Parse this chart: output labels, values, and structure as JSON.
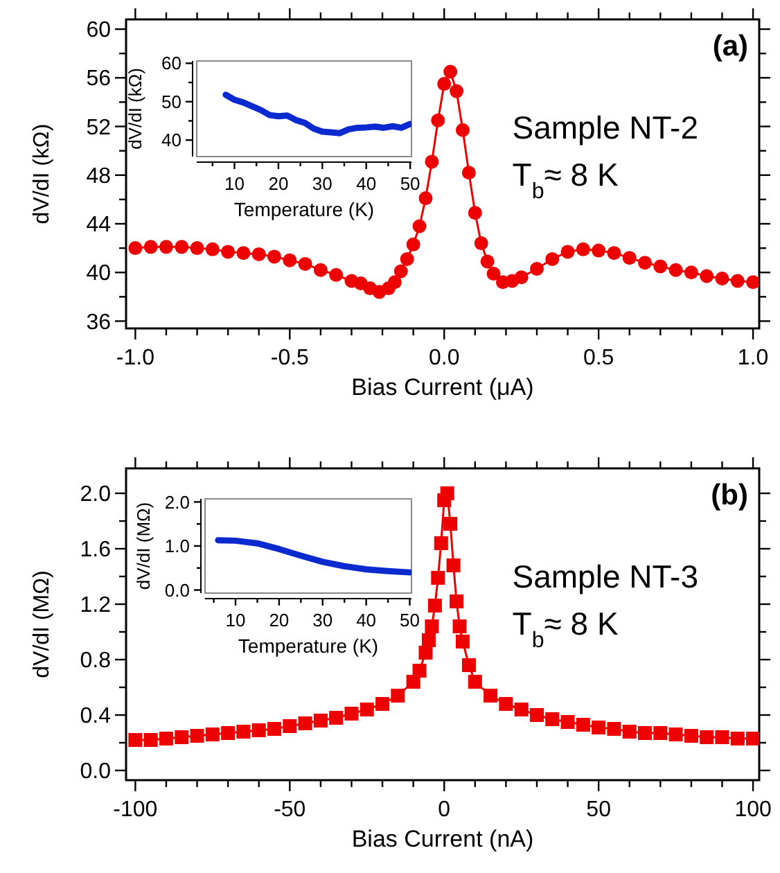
{
  "chart_data": [
    {
      "type": "line",
      "xlabel": "Bias Current (μA)",
      "ylabel": "dV/dI (kΩ)",
      "marker": "circle",
      "annotations": [
        "(a)",
        "Sample NT-2",
        "T$_{b}$≈ 8 K"
      ],
      "xlim": [
        -1.03,
        1.02
      ],
      "ylim": [
        35.4,
        60.8
      ],
      "xticks": [
        {
          "value": -1,
          "label": "-1.0"
        },
        {
          "value": -0.9,
          "label": null
        },
        {
          "value": -0.8,
          "label": null
        },
        {
          "value": -0.7,
          "label": null
        },
        {
          "value": -0.6,
          "label": null
        },
        {
          "value": -0.5,
          "label": "-0.5"
        },
        {
          "value": -0.4,
          "label": null
        },
        {
          "value": -0.3,
          "label": null
        },
        {
          "value": -0.2,
          "label": null
        },
        {
          "value": -0.1,
          "label": null
        },
        {
          "value": 0,
          "label": "0.0"
        },
        {
          "value": 0.1,
          "label": null
        },
        {
          "value": 0.2,
          "label": null
        },
        {
          "value": 0.3,
          "label": null
        },
        {
          "value": 0.4,
          "label": null
        },
        {
          "value": 0.5,
          "label": "0.5"
        },
        {
          "value": 0.6,
          "label": null
        },
        {
          "value": 0.7,
          "label": null
        },
        {
          "value": 0.8,
          "label": null
        },
        {
          "value": 0.9,
          "label": null
        },
        {
          "value": 1,
          "label": "1.0"
        }
      ],
      "yticks": [
        36,
        {
          "value": 38,
          "label": null
        },
        40,
        {
          "value": 42,
          "label": null
        },
        44,
        {
          "value": 46,
          "label": null
        },
        48,
        {
          "value": 50,
          "label": null
        },
        52,
        {
          "value": 54,
          "label": null
        },
        56,
        {
          "value": 58,
          "label": null
        },
        60
      ],
      "x": [
        -1.0,
        -0.95,
        -0.9,
        -0.85,
        -0.8,
        -0.75,
        -0.7,
        -0.65,
        -0.6,
        -0.55,
        -0.5,
        -0.45,
        -0.4,
        -0.35,
        -0.3,
        -0.27,
        -0.24,
        -0.21,
        -0.18,
        -0.16,
        -0.14,
        -0.12,
        -0.1,
        -0.08,
        -0.06,
        -0.04,
        -0.02,
        0.0,
        0.02,
        0.04,
        0.06,
        0.08,
        0.1,
        0.12,
        0.14,
        0.16,
        0.19,
        0.22,
        0.25,
        0.3,
        0.35,
        0.4,
        0.45,
        0.5,
        0.55,
        0.6,
        0.65,
        0.7,
        0.75,
        0.8,
        0.85,
        0.9,
        0.95,
        1.0
      ],
      "series": [
        {
          "color": "#ee0000",
          "values": [
            42.0,
            42.1,
            42.1,
            42.1,
            42.0,
            41.9,
            41.7,
            41.6,
            41.5,
            41.3,
            41.0,
            40.7,
            40.2,
            39.8,
            39.3,
            39.1,
            38.7,
            38.4,
            38.7,
            39.2,
            40.1,
            41.1,
            42.3,
            43.8,
            46.1,
            49.1,
            52.5,
            55.5,
            56.5,
            54.9,
            51.7,
            48.2,
            44.9,
            42.4,
            40.9,
            39.9,
            39.2,
            39.3,
            39.6,
            40.3,
            41.1,
            41.7,
            41.9,
            41.8,
            41.6,
            41.2,
            40.8,
            40.5,
            40.2,
            40.0,
            39.7,
            39.5,
            39.3,
            39.2
          ]
        }
      ]
    },
    {
      "type": "line",
      "xlabel": "Temperature (K)",
      "ylabel": "dV/dI (kΩ)",
      "xlim": [
        1.4,
        50.3
      ],
      "ylim": [
        35.7,
        60.6
      ],
      "xticks": [
        {
          "value": 5,
          "label": null
        },
        10,
        {
          "value": 15,
          "label": null
        },
        20,
        {
          "value": 25,
          "label": null
        },
        30,
        {
          "value": 35,
          "label": null
        },
        40,
        {
          "value": 45,
          "label": null
        },
        50
      ],
      "yticks": [
        40,
        {
          "value": 45,
          "label": null
        },
        50,
        {
          "value": 55,
          "label": null
        },
        60
      ],
      "x": [
        8,
        10,
        12,
        14,
        16,
        18,
        20,
        22,
        24,
        26,
        28,
        30,
        32,
        34,
        36,
        38,
        40,
        42,
        44,
        46,
        48,
        50
      ],
      "series": [
        {
          "color": "#0a2ad0",
          "values": [
            51.8,
            50.5,
            49.8,
            48.8,
            47.8,
            46.5,
            46.2,
            46.4,
            45.2,
            44.5,
            43.0,
            42.2,
            42.0,
            41.8,
            42.8,
            43.2,
            43.3,
            43.5,
            43.2,
            43.6,
            43.2,
            44.2
          ]
        }
      ]
    },
    {
      "type": "line",
      "xlabel": "Bias Current (nA)",
      "ylabel": "dV/dI (MΩ)",
      "marker": "square",
      "annotations": [
        "(b)",
        "Sample NT-3",
        "T$_{b}$≈ 8 K"
      ],
      "xlim": [
        -103,
        102
      ],
      "ylim": [
        -0.07,
        2.18
      ],
      "xticks": [
        -100,
        {
          "value": -90,
          "label": null
        },
        {
          "value": -80,
          "label": null
        },
        {
          "value": -70,
          "label": null
        },
        {
          "value": -60,
          "label": null
        },
        -50,
        {
          "value": -40,
          "label": null
        },
        {
          "value": -30,
          "label": null
        },
        {
          "value": -20,
          "label": null
        },
        {
          "value": -10,
          "label": null
        },
        0,
        {
          "value": 10,
          "label": null
        },
        {
          "value": 20,
          "label": null
        },
        {
          "value": 30,
          "label": null
        },
        {
          "value": 40,
          "label": null
        },
        50,
        {
          "value": 60,
          "label": null
        },
        {
          "value": 70,
          "label": null
        },
        {
          "value": 80,
          "label": null
        },
        {
          "value": 90,
          "label": null
        },
        100
      ],
      "yticks": [
        {
          "value": 0,
          "label": "0.0"
        },
        {
          "value": 0.2,
          "label": null
        },
        0.4,
        {
          "value": 0.6,
          "label": null
        },
        0.8,
        {
          "value": 1.0,
          "label": null
        },
        1.2,
        {
          "value": 1.4,
          "label": null
        },
        1.6,
        {
          "value": 1.8,
          "label": null
        },
        {
          "value": 2,
          "label": "2.0"
        }
      ],
      "x": [
        -100,
        -95,
        -90,
        -85,
        -80,
        -75,
        -70,
        -65,
        -60,
        -55,
        -50,
        -45,
        -40,
        -35,
        -30,
        -25,
        -20,
        -15,
        -10,
        -8,
        -6,
        -5,
        -4,
        -3,
        -2,
        -1,
        0,
        1,
        2,
        3,
        4,
        5,
        6,
        8,
        10,
        15,
        20,
        25,
        30,
        35,
        40,
        45,
        50,
        55,
        60,
        65,
        70,
        75,
        80,
        85,
        90,
        95,
        100
      ],
      "series": [
        {
          "color": "#ee0000",
          "values": [
            0.22,
            0.22,
            0.23,
            0.24,
            0.25,
            0.26,
            0.27,
            0.28,
            0.29,
            0.3,
            0.32,
            0.34,
            0.36,
            0.38,
            0.41,
            0.44,
            0.48,
            0.54,
            0.64,
            0.72,
            0.85,
            0.94,
            1.04,
            1.19,
            1.39,
            1.64,
            1.95,
            2.0,
            1.78,
            1.48,
            1.22,
            1.04,
            0.93,
            0.76,
            0.64,
            0.54,
            0.48,
            0.44,
            0.4,
            0.37,
            0.35,
            0.33,
            0.31,
            0.3,
            0.28,
            0.27,
            0.27,
            0.26,
            0.25,
            0.24,
            0.24,
            0.23,
            0.23
          ]
        }
      ]
    },
    {
      "type": "line",
      "xlabel": "Temperature (K)",
      "ylabel": "dV/dI (MΩ)",
      "xlim": [
        3.0,
        50.4
      ],
      "ylim": [
        -0.07,
        2.07
      ],
      "xticks": [
        {
          "value": 5,
          "label": null
        },
        10,
        {
          "value": 15,
          "label": null
        },
        20,
        {
          "value": 25,
          "label": null
        },
        30,
        {
          "value": 35,
          "label": null
        },
        40,
        {
          "value": 45,
          "label": null
        },
        50
      ],
      "yticks": [
        {
          "value": 0,
          "label": "0.0"
        },
        {
          "value": 0.5,
          "label": null
        },
        {
          "value": 1,
          "label": "1.0"
        },
        {
          "value": 1.5,
          "label": null
        },
        {
          "value": 2,
          "label": "2.0"
        }
      ],
      "x": [
        6,
        10,
        15,
        20,
        25,
        30,
        35,
        40,
        45,
        50
      ],
      "series": [
        {
          "color": "#0a2ad0",
          "values": [
            1.13,
            1.12,
            1.06,
            0.93,
            0.78,
            0.64,
            0.54,
            0.47,
            0.43,
            0.4
          ]
        }
      ]
    }
  ]
}
